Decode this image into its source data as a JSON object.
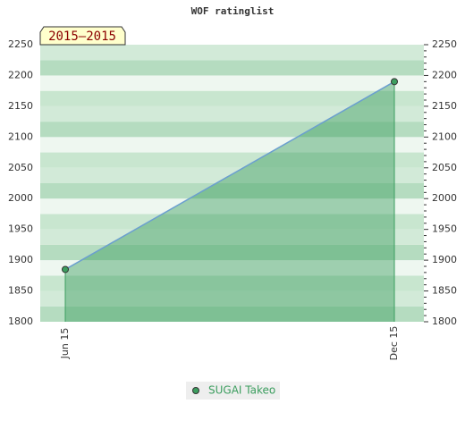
{
  "chart_data": {
    "type": "area",
    "title": "WOF ratinglist",
    "annotation": "2015–2015",
    "categories": [
      "Jun 15",
      "Dec 15"
    ],
    "series": [
      {
        "name": "SUGAI Takeo",
        "color": "#3c9e5f",
        "line_color": "#6b9fcf",
        "values": [
          1885,
          2190
        ]
      }
    ],
    "ylim": [
      1800,
      2250
    ],
    "yticks": [
      1800,
      1850,
      1900,
      1950,
      2000,
      2050,
      2100,
      2150,
      2200,
      2250
    ],
    "grid": true
  }
}
